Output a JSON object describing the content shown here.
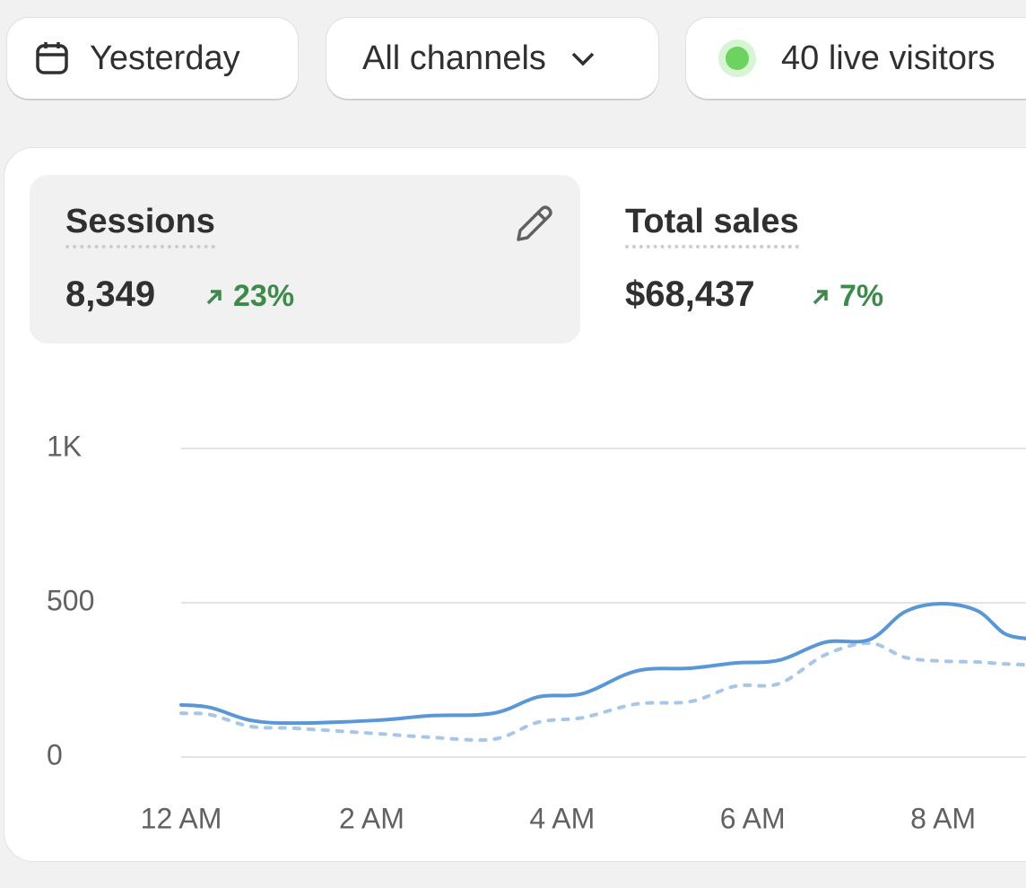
{
  "toolbar": {
    "date_button": "Yesterday",
    "channel_button": "All channels",
    "live_button": "40 live visitors"
  },
  "metrics": [
    {
      "label": "Sessions",
      "value": "8,349",
      "change": "23%"
    },
    {
      "label": "Total sales",
      "value": "$68,437",
      "change": "7%"
    }
  ],
  "chart_data": {
    "type": "line",
    "x": [
      0,
      0.31,
      0.73,
      1.2,
      2.05,
      2.62,
      3.28,
      3.75,
      4.22,
      4.78,
      5.35,
      5.82,
      6.28,
      6.76,
      7.23,
      7.6,
      7.98,
      8.36,
      8.64,
      8.87
    ],
    "series": [
      {
        "color": "#5a97d6",
        "values": [
          169,
          160,
          119,
          110,
          119,
          134,
          142,
          195,
          206,
          279,
          288,
          305,
          314,
          372,
          381,
          471,
          497,
          474,
          401,
          384
        ]
      },
      {
        "color": "#a8c6e8",
        "dashed": true,
        "values": [
          142,
          137,
          99,
          93,
          76,
          64,
          58,
          113,
          128,
          172,
          180,
          230,
          238,
          331,
          369,
          323,
          311,
          308,
          302,
          299
        ]
      }
    ],
    "xlim": [
      0,
      8.87
    ],
    "xticks": [
      {
        "value": 0,
        "label": "12 AM"
      },
      {
        "value": 2,
        "label": "2 AM"
      },
      {
        "value": 4,
        "label": "4 AM"
      },
      {
        "value": 6,
        "label": "6 AM"
      },
      {
        "value": 8,
        "label": "8 AM"
      }
    ],
    "ylim": [
      0,
      1000
    ],
    "yticks": [
      0,
      500,
      {
        "value": 1000,
        "label": "1K"
      }
    ],
    "grid": true
  }
}
